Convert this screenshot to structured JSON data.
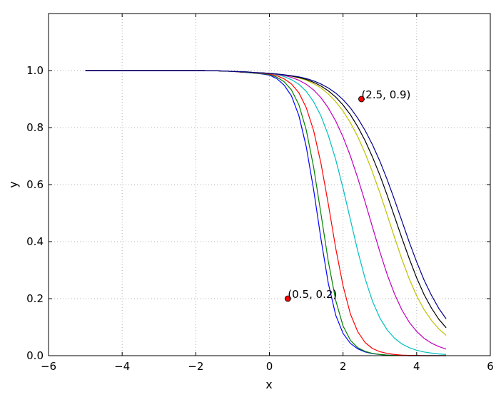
{
  "chart_data": {
    "type": "line",
    "title": "",
    "xlabel": "x",
    "ylabel": "y",
    "xlim": [
      -6,
      6
    ],
    "ylim": [
      0.0,
      1.2
    ],
    "xticks": [
      -6,
      -4,
      -2,
      0,
      2,
      4,
      6
    ],
    "xtick_labels": [
      "−6",
      "−4",
      "−2",
      "0",
      "2",
      "4",
      "6"
    ],
    "yticks": [
      0.0,
      0.2,
      0.4,
      0.6,
      0.8,
      1.0
    ],
    "ytick_labels": [
      "0.0",
      "0.2",
      "0.4",
      "0.6",
      "0.8",
      "1.0"
    ],
    "grid": true,
    "x": [
      -5.0,
      -4.8,
      -4.6,
      -4.4,
      -4.2,
      -4.0,
      -3.8,
      -3.6,
      -3.4,
      -3.2,
      -3.0,
      -2.8,
      -2.6,
      -2.4,
      -2.2,
      -2.0,
      -1.8,
      -1.6,
      -1.4,
      -1.2,
      -1.0,
      -0.8,
      -0.6,
      -0.4,
      -0.2,
      0.0,
      0.2,
      0.4,
      0.6,
      0.8,
      1.0,
      1.2,
      1.4,
      1.6,
      1.8,
      2.0,
      2.2,
      2.4,
      2.6,
      2.8,
      3.0,
      3.2,
      3.4,
      3.6,
      3.8,
      4.0,
      4.2,
      4.4,
      4.6,
      4.8
    ],
    "series": [
      {
        "color": "#0000ff",
        "values": [
          1.0,
          1.0,
          1.0,
          1.0,
          1.0,
          1.0,
          1.0,
          1.0,
          1.0,
          1.0,
          1.0,
          1.0,
          1.0,
          1.0,
          1.0,
          1.0,
          1.0,
          0.999,
          0.999,
          0.998,
          0.997,
          0.995,
          0.993,
          0.991,
          0.988,
          0.984,
          0.972,
          0.949,
          0.911,
          0.842,
          0.733,
          0.583,
          0.41,
          0.254,
          0.142,
          0.078,
          0.043,
          0.024,
          0.013,
          0.007,
          0.004,
          0.002,
          0.001,
          0.001,
          0.0,
          0.0,
          0.0,
          0.0,
          0.0,
          0.0
        ]
      },
      {
        "color": "#008000",
        "values": [
          1.0,
          1.0,
          1.0,
          1.0,
          1.0,
          1.0,
          1.0,
          1.0,
          1.0,
          1.0,
          1.0,
          1.0,
          1.0,
          1.0,
          1.0,
          1.0,
          1.0,
          0.999,
          0.999,
          0.998,
          0.997,
          0.995,
          0.993,
          0.991,
          0.989,
          0.986,
          0.977,
          0.961,
          0.932,
          0.88,
          0.792,
          0.662,
          0.498,
          0.331,
          0.194,
          0.104,
          0.054,
          0.028,
          0.015,
          0.008,
          0.004,
          0.002,
          0.001,
          0.001,
          0.0,
          0.0,
          0.0,
          0.0,
          0.0,
          0.0
        ]
      },
      {
        "color": "#ff0000",
        "values": [
          1.0,
          1.0,
          1.0,
          1.0,
          1.0,
          1.0,
          1.0,
          1.0,
          1.0,
          1.0,
          1.0,
          1.0,
          1.0,
          1.0,
          1.0,
          1.0,
          1.0,
          0.999,
          0.999,
          0.998,
          0.997,
          0.995,
          0.994,
          0.992,
          0.99,
          0.988,
          0.982,
          0.971,
          0.953,
          0.922,
          0.87,
          0.79,
          0.675,
          0.532,
          0.377,
          0.245,
          0.146,
          0.084,
          0.046,
          0.025,
          0.014,
          0.008,
          0.004,
          0.002,
          0.001,
          0.001,
          0.0,
          0.0,
          0.0,
          0.0
        ]
      },
      {
        "color": "#00bfbf",
        "values": [
          1.0,
          1.0,
          1.0,
          1.0,
          1.0,
          1.0,
          1.0,
          1.0,
          1.0,
          1.0,
          1.0,
          1.0,
          1.0,
          1.0,
          1.0,
          1.0,
          1.0,
          0.999,
          0.999,
          0.998,
          0.997,
          0.996,
          0.994,
          0.993,
          0.991,
          0.99,
          0.986,
          0.979,
          0.968,
          0.952,
          0.927,
          0.891,
          0.841,
          0.773,
          0.688,
          0.587,
          0.477,
          0.367,
          0.27,
          0.191,
          0.132,
          0.09,
          0.061,
          0.041,
          0.028,
          0.019,
          0.013,
          0.009,
          0.006,
          0.004
        ]
      },
      {
        "color": "#bf00bf",
        "values": [
          1.0,
          1.0,
          1.0,
          1.0,
          1.0,
          1.0,
          1.0,
          1.0,
          1.0,
          1.0,
          1.0,
          1.0,
          1.0,
          1.0,
          1.0,
          1.0,
          1.0,
          0.999,
          0.999,
          0.998,
          0.997,
          0.996,
          0.995,
          0.993,
          0.992,
          0.99,
          0.987,
          0.983,
          0.976,
          0.966,
          0.952,
          0.932,
          0.905,
          0.869,
          0.823,
          0.767,
          0.7,
          0.623,
          0.539,
          0.451,
          0.364,
          0.284,
          0.216,
          0.16,
          0.117,
          0.085,
          0.061,
          0.044,
          0.032,
          0.023
        ]
      },
      {
        "color": "#bfbf00",
        "values": [
          1.0,
          1.0,
          1.0,
          1.0,
          1.0,
          1.0,
          1.0,
          1.0,
          1.0,
          1.0,
          1.0,
          1.0,
          1.0,
          1.0,
          1.0,
          1.0,
          1.0,
          0.999,
          0.999,
          0.998,
          0.997,
          0.996,
          0.995,
          0.993,
          0.992,
          0.99,
          0.988,
          0.985,
          0.98,
          0.974,
          0.966,
          0.954,
          0.939,
          0.918,
          0.891,
          0.858,
          0.817,
          0.768,
          0.71,
          0.644,
          0.571,
          0.493,
          0.414,
          0.338,
          0.269,
          0.21,
          0.162,
          0.124,
          0.094,
          0.071
        ]
      },
      {
        "color": "#000000",
        "values": [
          1.0,
          1.0,
          1.0,
          1.0,
          1.0,
          1.0,
          1.0,
          1.0,
          1.0,
          1.0,
          1.0,
          1.0,
          1.0,
          1.0,
          1.0,
          1.0,
          1.0,
          0.999,
          0.999,
          0.998,
          0.997,
          0.996,
          0.995,
          0.993,
          0.992,
          0.99,
          0.988,
          0.985,
          0.981,
          0.976,
          0.969,
          0.959,
          0.946,
          0.929,
          0.907,
          0.879,
          0.845,
          0.803,
          0.754,
          0.697,
          0.633,
          0.562,
          0.487,
          0.412,
          0.34,
          0.273,
          0.215,
          0.167,
          0.128,
          0.098
        ]
      },
      {
        "color": "#00008b",
        "values": [
          1.0,
          1.0,
          1.0,
          1.0,
          1.0,
          1.0,
          1.0,
          1.0,
          1.0,
          1.0,
          1.0,
          1.0,
          1.0,
          1.0,
          1.0,
          1.0,
          1.0,
          0.999,
          0.999,
          0.998,
          0.997,
          0.996,
          0.995,
          0.993,
          0.992,
          0.99,
          0.988,
          0.985,
          0.982,
          0.978,
          0.972,
          0.964,
          0.953,
          0.939,
          0.921,
          0.898,
          0.869,
          0.833,
          0.79,
          0.74,
          0.682,
          0.617,
          0.546,
          0.472,
          0.398,
          0.329,
          0.266,
          0.212,
          0.166,
          0.129
        ]
      }
    ],
    "annotations": [
      {
        "x": 0.5,
        "y": 0.2,
        "label": "(0.5, 0.2)",
        "color": "#ff0000"
      },
      {
        "x": 2.5,
        "y": 0.9,
        "label": "(2.5, 0.9)",
        "color": "#ff0000"
      }
    ]
  }
}
